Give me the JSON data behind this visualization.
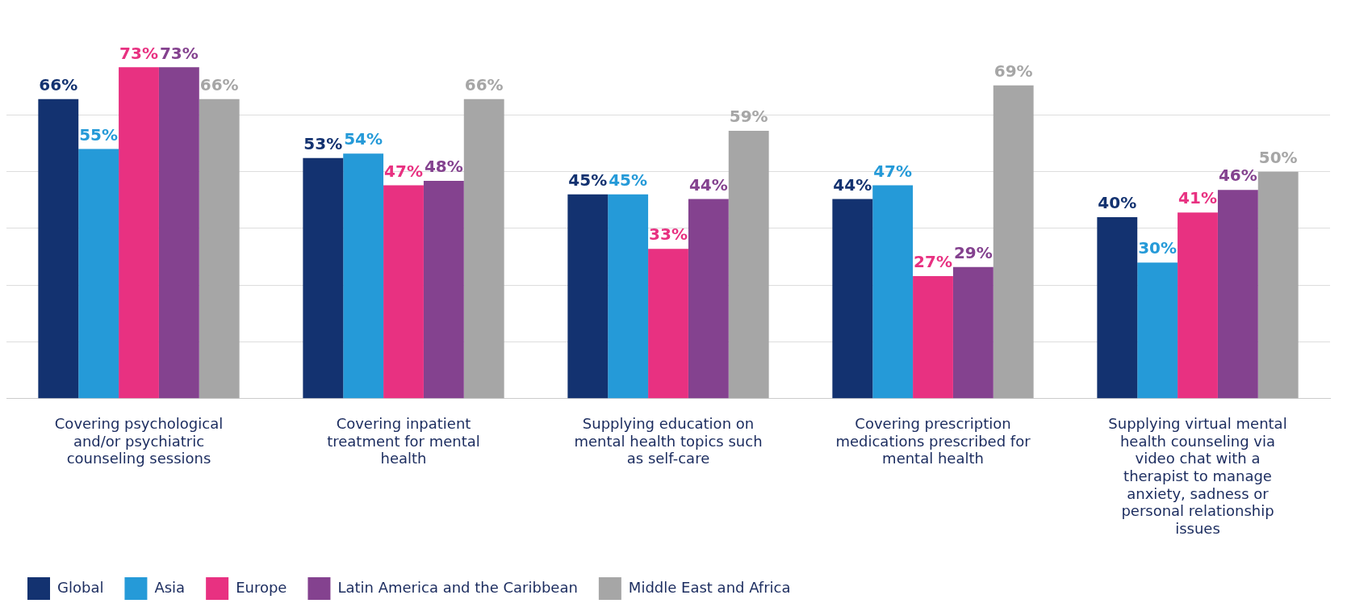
{
  "chart_data": {
    "type": "bar",
    "categories": [
      "Covering psychological and/or psychiatric counseling sessions",
      "Covering inpatient treatment for mental health",
      "Supplying education on mental health topics such as self-care",
      "Covering prescription medications prescribed for mental health",
      "Supplying virtual mental health counseling via video chat with a therapist to manage anxiety, sadness or personal relationship issues"
    ],
    "series": [
      {
        "name": "Global",
        "color": "#133270",
        "values": [
          66,
          53,
          45,
          44,
          40
        ],
        "value_labels": [
          "66%",
          "53%",
          "45%",
          "44%",
          "40%"
        ]
      },
      {
        "name": "Asia",
        "color": "#259ad8",
        "values": [
          55,
          54,
          45,
          47,
          30
        ],
        "value_labels": [
          "55%",
          "54%",
          "45%",
          "47%",
          "30%"
        ]
      },
      {
        "name": "Europe",
        "color": "#e83181",
        "values": [
          73,
          47,
          33,
          27,
          41
        ],
        "value_labels": [
          "73%",
          "47%",
          "33%",
          "27%",
          "41%"
        ]
      },
      {
        "name": "Latin America and the Caribbean",
        "color": "#84428f",
        "values": [
          73,
          48,
          44,
          29,
          46
        ],
        "value_labels": [
          "73%",
          "48%",
          "44%",
          "29%",
          "46%"
        ]
      },
      {
        "name": "Middle East and Africa",
        "color": "#a6a6a6",
        "values": [
          66,
          66,
          59,
          69,
          50
        ],
        "value_labels": [
          "66%",
          "66%",
          "59%",
          "69%",
          "50%"
        ]
      }
    ],
    "yticks": [
      {
        "value": 0,
        "label": null
      },
      {
        "value": 12.5,
        "label": null
      },
      {
        "value": 25,
        "label": null
      },
      {
        "value": 37.5,
        "label": null
      },
      {
        "value": 50,
        "label": null
      },
      {
        "value": 62.5,
        "label": null
      }
    ],
    "tick_labels": "x",
    "grid": "y",
    "legend": "bottom left"
  }
}
